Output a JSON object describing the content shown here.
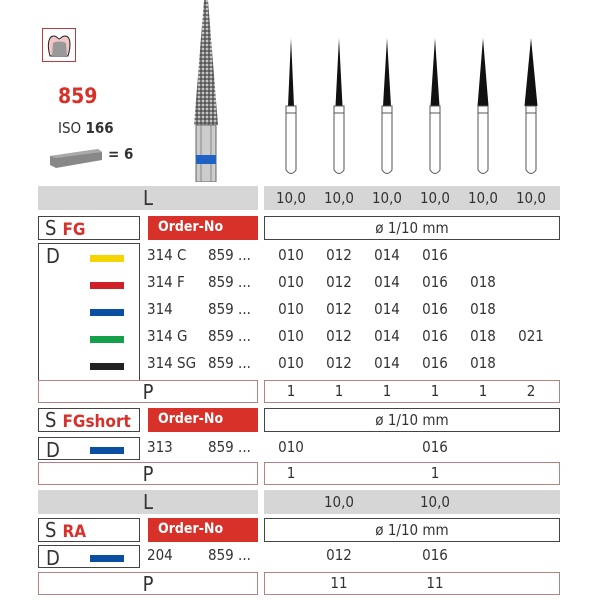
{
  "header": {
    "model": "859",
    "iso_label": "ISO",
    "iso_value": "166",
    "pack_qty": "= 6",
    "model_color": "#d8312a"
  },
  "columns": 6,
  "sections": [
    {
      "length_label": "L",
      "lengths": [
        "10,0",
        "10,0",
        "10,0",
        "10,0",
        "10,0",
        "10,0"
      ],
      "s_label": "S",
      "type": "FG",
      "order_label": "Order-No",
      "unit": "ø 1/10 mm",
      "d_label": "D",
      "rows": [
        {
          "color": "#f5d400",
          "code": "314 C",
          "ref": "859 ...",
          "sizes": [
            "010",
            "012",
            "014",
            "016",
            "",
            ""
          ]
        },
        {
          "color": "#d01f26",
          "code": "314 F",
          "ref": "859 ...",
          "sizes": [
            "010",
            "012",
            "014",
            "016",
            "018",
            ""
          ]
        },
        {
          "color": "#0b4fa3",
          "code": "314",
          "ref": "859 ...",
          "sizes": [
            "010",
            "012",
            "014",
            "016",
            "018",
            ""
          ]
        },
        {
          "color": "#14a04a",
          "code": "314 G",
          "ref": "859 ...",
          "sizes": [
            "010",
            "012",
            "014",
            "016",
            "018",
            "021"
          ]
        },
        {
          "color": "#222222",
          "code": "314 SG",
          "ref": "859 ...",
          "sizes": [
            "010",
            "012",
            "014",
            "016",
            "018",
            ""
          ]
        }
      ],
      "p_label": "P",
      "packs": [
        "1",
        "1",
        "1",
        "1",
        "1",
        "2"
      ]
    },
    {
      "s_label": "S",
      "type": "FGshort",
      "order_label": "Order-No",
      "unit": "ø 1/10 mm",
      "d_label": "D",
      "rows": [
        {
          "color": "#0b4fa3",
          "code": "313",
          "ref": "859 ...",
          "sizes": [
            "010",
            "",
            "",
            "016",
            "",
            ""
          ]
        }
      ],
      "p_label": "P",
      "packs": [
        "1",
        "",
        "",
        "1",
        "",
        ""
      ]
    },
    {
      "length_label": "L",
      "lengths": [
        "",
        "10,0",
        "",
        "10,0",
        "",
        ""
      ],
      "s_label": "S",
      "type": "RA",
      "order_label": "Order-No",
      "unit": "ø 1/10 mm",
      "d_label": "D",
      "rows": [
        {
          "color": "#0b4fa3",
          "code": "204",
          "ref": "859 ...",
          "sizes": [
            "",
            "012",
            "",
            "016",
            "",
            ""
          ]
        }
      ],
      "p_label": "P",
      "packs": [
        "",
        "11",
        "",
        "11",
        "",
        ""
      ]
    }
  ]
}
